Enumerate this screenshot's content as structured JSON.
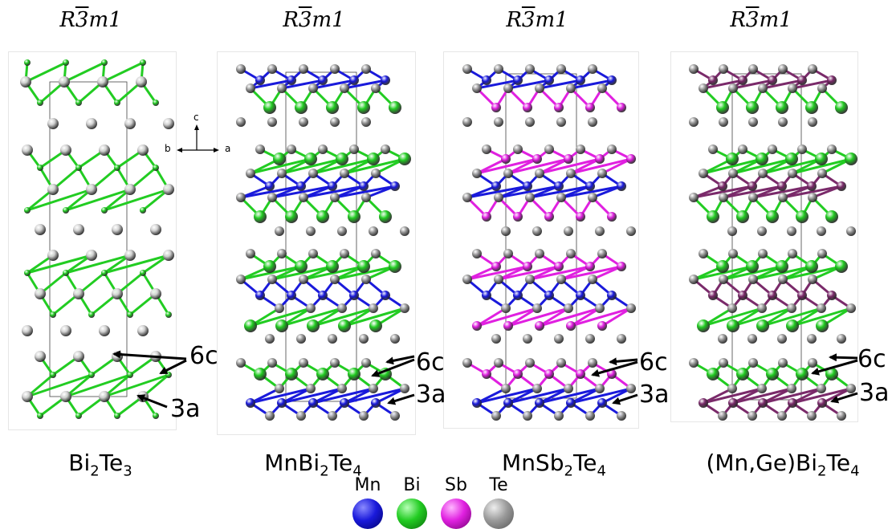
{
  "space_groups": [
    {
      "prefix": "R",
      "bar": "3",
      "suffix": "m1"
    },
    {
      "prefix": "R",
      "bar": "3",
      "suffix": "m1"
    },
    {
      "prefix": "R",
      "bar": "3",
      "suffix": "m1"
    },
    {
      "prefix": "R",
      "bar": "3",
      "suffix": "m1"
    }
  ],
  "formulas": [
    {
      "parts": [
        "Bi",
        "2",
        "Te",
        "3"
      ]
    },
    {
      "parts": [
        "MnBi",
        "2",
        "Te",
        "4"
      ]
    },
    {
      "parts": [
        "MnSb",
        "2",
        "Te",
        "4"
      ]
    },
    {
      "parts": [
        "(Mn,Ge)Bi",
        "2",
        "Te",
        "4"
      ]
    }
  ],
  "axes": {
    "c": "c",
    "b": "b",
    "a": "a"
  },
  "site_labels": {
    "six_c": "6c",
    "three_a": "3a"
  },
  "legend": [
    {
      "label": "Mn",
      "color": "#1a1adb"
    },
    {
      "label": "Bi",
      "color": "#22cc22"
    },
    {
      "label": "Sb",
      "color": "#e020e0"
    },
    {
      "label": "Te",
      "color": "#9a9a9a"
    }
  ],
  "colors": {
    "mn": "#1a1adb",
    "bi": "#22cc22",
    "sb": "#e020e0",
    "te": "#9a9a9a",
    "te_light": "#cfcfcf"
  }
}
